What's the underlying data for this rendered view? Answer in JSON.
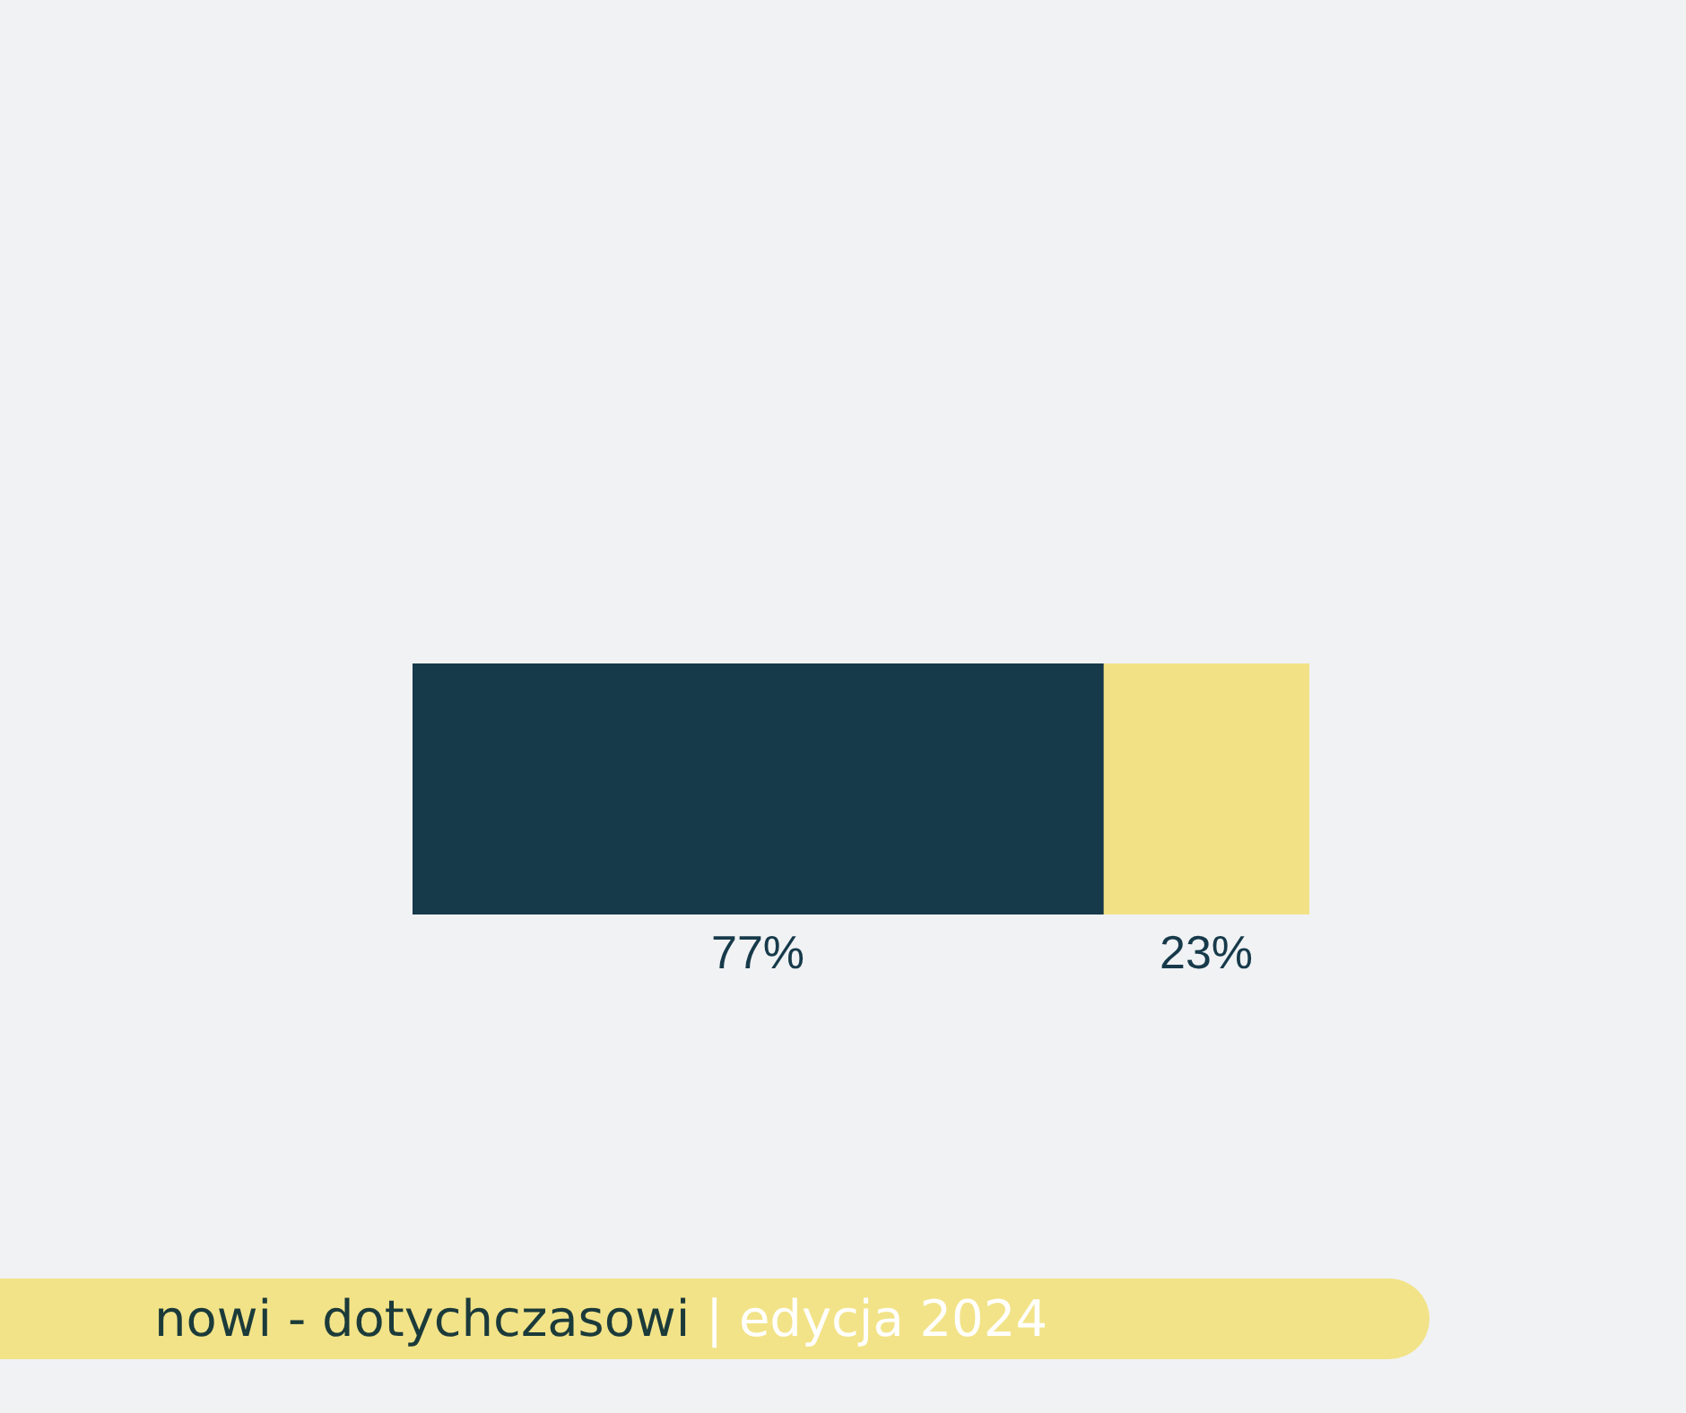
{
  "chart_data": {
    "type": "bar",
    "orientation": "horizontal",
    "stacked": true,
    "categories": [
      null
    ],
    "series": [
      {
        "color": "#173a4a",
        "values": [
          77
        ],
        "value_labels": [
          "77%"
        ]
      },
      {
        "color": "#f2e285",
        "values": [
          23
        ],
        "value_labels": [
          "23%"
        ]
      }
    ],
    "tick_labels": false,
    "grid": false,
    "legend": false,
    "title": "nowi - dotychczasowi",
    "subtitle": "| edycja 2024"
  }
}
